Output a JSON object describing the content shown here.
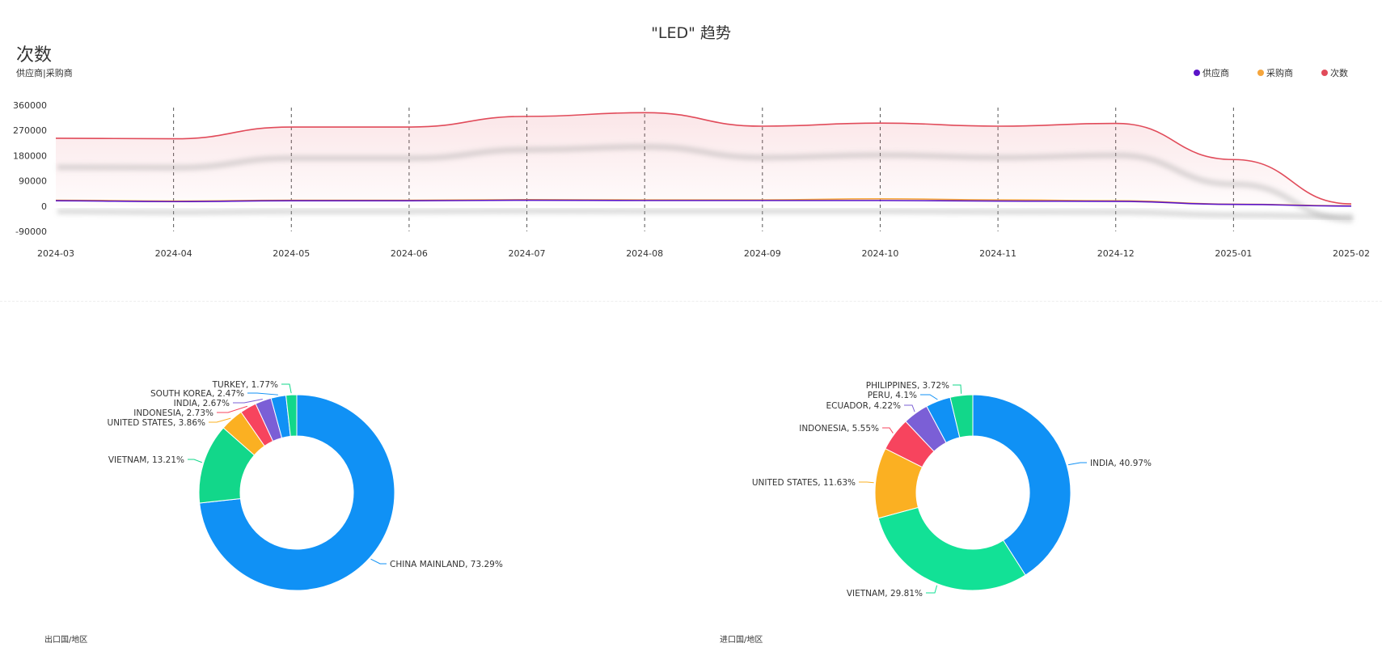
{
  "title": "\"LED\" 趋势",
  "big_label": "次数",
  "sub_label": "供应商|采购商",
  "legend": [
    {
      "name": "供应商",
      "color": "#5a14c8"
    },
    {
      "name": "采购商",
      "color": "#f5a53c"
    },
    {
      "name": "次数",
      "color": "#e14b5a"
    }
  ],
  "pie_captions": [
    "出口国/地区",
    "进口国/地区"
  ],
  "chart_data": [
    {
      "type": "line",
      "x": [
        "2024-03",
        "2024-04",
        "2024-05",
        "2024-06",
        "2024-07",
        "2024-08",
        "2024-09",
        "2024-10",
        "2024-11",
        "2024-12",
        "2025-01",
        "2025-02"
      ],
      "y_ticks": [
        360000,
        270000,
        180000,
        90000,
        0,
        -90000
      ],
      "ylim": [
        -90000,
        360000
      ],
      "grid": "vertical-dashed",
      "legend_position": "top-right",
      "series": [
        {
          "name": "供应商",
          "color": "#5a14c8",
          "values": [
            19000,
            16000,
            19000,
            19000,
            21000,
            20000,
            20000,
            20000,
            18000,
            17000,
            6000,
            0
          ]
        },
        {
          "name": "采购商",
          "color": "#f5a53c",
          "values": [
            21000,
            18000,
            21000,
            21000,
            23000,
            22000,
            22000,
            26000,
            22000,
            19000,
            7000,
            1000
          ]
        },
        {
          "name": "次数",
          "color": "#e14b5a",
          "values": [
            242000,
            240000,
            282000,
            282000,
            320000,
            333000,
            285000,
            296000,
            285000,
            295000,
            166000,
            8000
          ]
        }
      ]
    },
    {
      "type": "pie",
      "style": "donut",
      "slices": [
        {
          "label": "CHINA MAINLAND, 73.29%",
          "value": 73.29,
          "color": "#1091f5"
        },
        {
          "label": "VIETNAM, 13.21%",
          "value": 13.21,
          "color": "#12d78a"
        },
        {
          "label": "UNITED STATES, 3.86%",
          "value": 3.86,
          "color": "#fbb022"
        },
        {
          "label": "INDONESIA, 2.73%",
          "value": 2.73,
          "color": "#f7445e"
        },
        {
          "label": "INDIA, 2.67%",
          "value": 2.67,
          "color": "#7b5fd6"
        },
        {
          "label": "SOUTH KOREA, 2.47%",
          "value": 2.47,
          "color": "#1091f5"
        },
        {
          "label": "TURKEY, 1.77%",
          "value": 1.77,
          "color": "#12d78a"
        }
      ]
    },
    {
      "type": "pie",
      "style": "donut",
      "slices": [
        {
          "label": "INDIA, 40.97%",
          "value": 40.97,
          "color": "#1091f5"
        },
        {
          "label": "VIETNAM, 29.81%",
          "value": 29.81,
          "color": "#12e196"
        },
        {
          "label": "UNITED STATES, 11.63%",
          "value": 11.63,
          "color": "#fbb022"
        },
        {
          "label": "INDONESIA, 5.55%",
          "value": 5.55,
          "color": "#f7445e"
        },
        {
          "label": "ECUADOR, 4.22%",
          "value": 4.22,
          "color": "#7b5fd6"
        },
        {
          "label": "PERU, 4.1%",
          "value": 4.1,
          "color": "#1091f5"
        },
        {
          "label": "PHILIPPINES, 3.72%",
          "value": 3.72,
          "color": "#12d78a"
        }
      ]
    }
  ]
}
